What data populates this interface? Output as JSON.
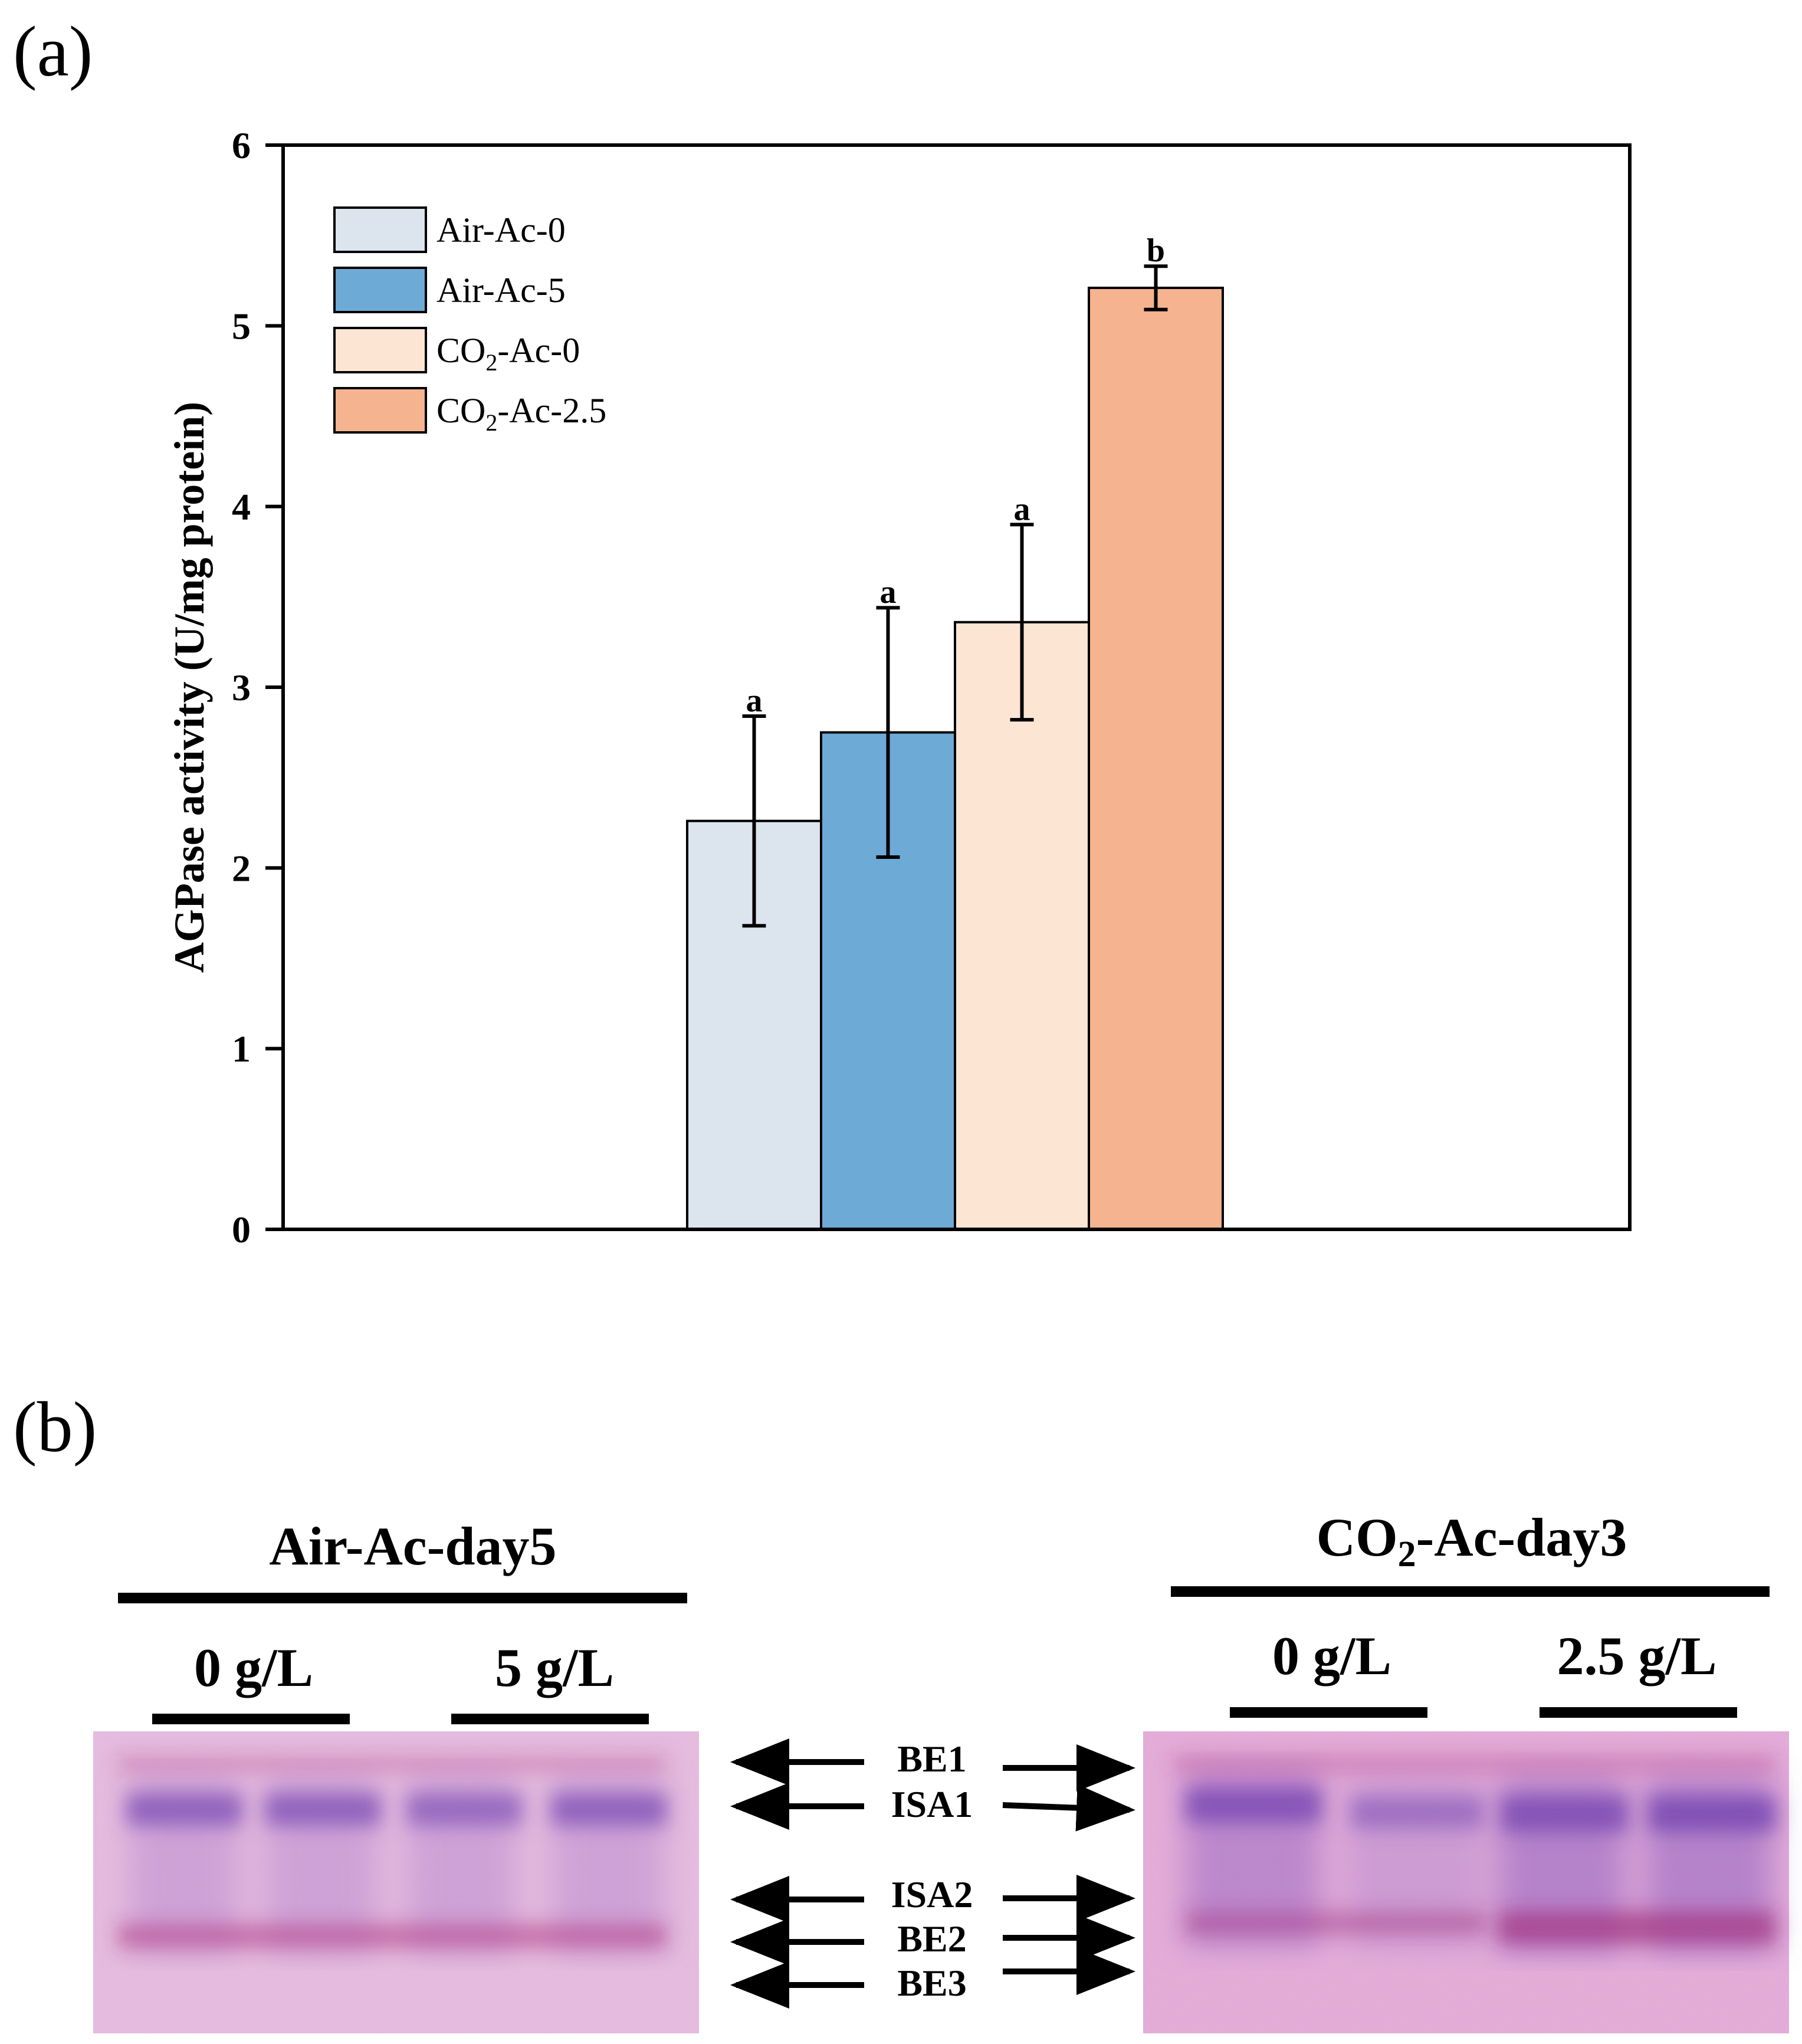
{
  "panel_a": {
    "label": "(a)"
  },
  "panel_b": {
    "label": "(b)",
    "left_gel": {
      "title": "Air-Ac-day5",
      "conc_1": "0 g/L",
      "conc_2": "5 g/L"
    },
    "right_gel": {
      "title_prefix": "CO",
      "title_sub": "2",
      "title_suffix": "-Ac-day3",
      "conc_1": "0 g/L",
      "conc_2": "2.5 g/L"
    },
    "bands": [
      "BE1",
      "ISA1",
      "ISA2",
      "BE2",
      "BE3"
    ],
    "colors": {
      "gel_background": "#e7bfe0",
      "gel_band_blue": "#7a4fb8",
      "gel_band_magenta": "#b0307a"
    }
  },
  "chart_data": {
    "type": "bar",
    "title": "",
    "xlabel": "",
    "ylabel": "AGPase activity (U/mg protein)",
    "ylim": [
      0,
      6
    ],
    "yticks": [
      "0",
      "1",
      "2",
      "3",
      "4",
      "5",
      "6"
    ],
    "grid": false,
    "legend_position": "top-left",
    "series": [
      {
        "name": "Air-Ac-0",
        "legend_main": "Air-Ac-0",
        "legend_sub": "",
        "legend_tail": "",
        "value": 2.26,
        "error": 0.58,
        "sig": "a",
        "color": "#dce4ee"
      },
      {
        "name": "Air-Ac-5",
        "legend_main": "Air-Ac-5",
        "legend_sub": "",
        "legend_tail": "",
        "value": 2.75,
        "error": 0.69,
        "sig": "a",
        "color": "#6eaad6"
      },
      {
        "name": "CO2-Ac-0",
        "legend_main": "CO",
        "legend_sub": "2",
        "legend_tail": "-Ac-0",
        "value": 3.36,
        "error": 0.54,
        "sig": "a",
        "color": "#fde5d4"
      },
      {
        "name": "CO2-Ac-2.5",
        "legend_main": "CO",
        "legend_sub": "2",
        "legend_tail": "-Ac-2.5",
        "value": 5.21,
        "error": 0.12,
        "sig": "b",
        "color": "#f5b38f"
      }
    ]
  }
}
